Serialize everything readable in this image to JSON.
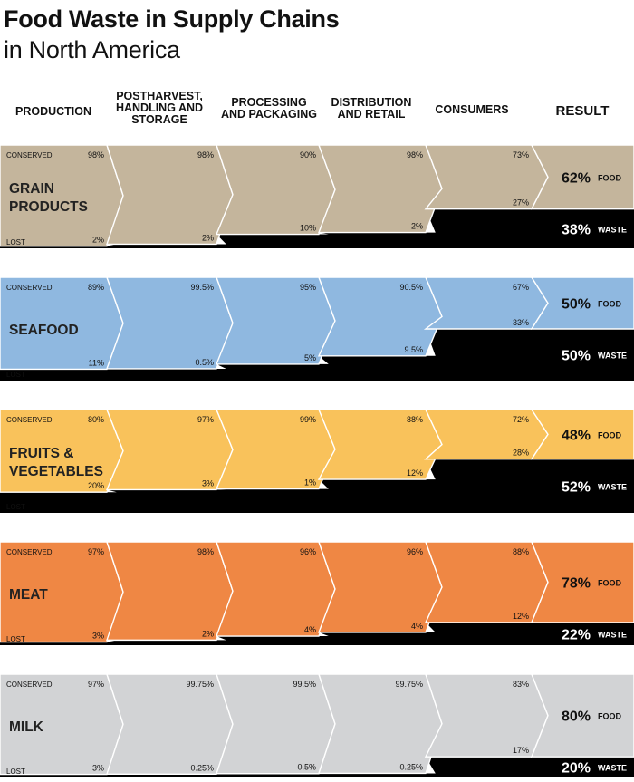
{
  "title": "Food Waste in Supply Chains",
  "subtitle": "in North America",
  "stages": [
    "PRODUCTION",
    "POSTHARVEST, HANDLING AND STORAGE",
    "PROCESSING AND PACKAGING",
    "DISTRIBUTION AND RETAIL",
    "CONSUMERS",
    "RESULT"
  ],
  "stage_lines": [
    [
      "PRODUCTION"
    ],
    [
      "POSTHARVEST,",
      "HANDLING AND",
      "STORAGE"
    ],
    [
      "PROCESSING",
      "AND PACKAGING"
    ],
    [
      "DISTRIBUTION",
      "AND RETAIL"
    ],
    [
      "CONSUMERS"
    ],
    [
      "RESULT"
    ]
  ],
  "row_labels": {
    "conserved": "CONSERVED",
    "lost": "LOST",
    "food": "FOOD",
    "waste": "WASTE"
  },
  "chart_data": {
    "type": "table",
    "title": "Food Waste in Supply Chains",
    "subtitle": "in North America",
    "columns": [
      "PRODUCTION",
      "POSTHARVEST, HANDLING AND STORAGE",
      "PROCESSING AND PACKAGING",
      "DISTRIBUTION AND RETAIL",
      "CONSUMERS",
      "RESULT"
    ],
    "series": [
      {
        "name": "GRAIN PRODUCTS",
        "name_lines": [
          "GRAIN",
          "PRODUCTS"
        ],
        "color": "#c4b59c",
        "conserved": [
          "98%",
          "98%",
          "90%",
          "98%",
          "73%"
        ],
        "lost": [
          "2%",
          "2%",
          "10%",
          "2%",
          "27%"
        ],
        "result_food": "62%",
        "result_waste": "38%",
        "food_fraction": 0.62
      },
      {
        "name": "SEAFOOD",
        "name_lines": [
          "SEAFOOD"
        ],
        "color": "#8fb8e0",
        "conserved": [
          "89%",
          "99.5%",
          "95%",
          "90.5%",
          "67%"
        ],
        "lost": [
          "11%",
          "0.5%",
          "5%",
          "9.5%",
          "33%"
        ],
        "result_food": "50%",
        "result_waste": "50%",
        "food_fraction": 0.5
      },
      {
        "name": "FRUITS & VEGETABLES",
        "name_lines": [
          "FRUITS &",
          "VEGETABLES"
        ],
        "color": "#f9c25b",
        "conserved": [
          "80%",
          "97%",
          "99%",
          "88%",
          "72%"
        ],
        "lost": [
          "20%",
          "3%",
          "1%",
          "12%",
          "28%"
        ],
        "result_food": "48%",
        "result_waste": "52%",
        "food_fraction": 0.48
      },
      {
        "name": "MEAT",
        "name_lines": [
          "MEAT"
        ],
        "color": "#ef8744",
        "conserved": [
          "97%",
          "98%",
          "96%",
          "96%",
          "88%"
        ],
        "lost": [
          "3%",
          "2%",
          "4%",
          "4%",
          "12%"
        ],
        "result_food": "78%",
        "result_waste": "22%",
        "food_fraction": 0.78
      },
      {
        "name": "MILK",
        "name_lines": [
          "MILK"
        ],
        "color": "#d2d3d5",
        "conserved": [
          "97%",
          "99.75%",
          "99.5%",
          "99.75%",
          "83%"
        ],
        "lost": [
          "3%",
          "0.25%",
          "0.5%",
          "0.25%",
          "17%"
        ],
        "result_food": "80%",
        "result_waste": "20%",
        "food_fraction": 0.8
      }
    ],
    "cumulative_remaining": [
      [
        0.98,
        0.9604,
        0.8644,
        0.8471,
        0.62
      ],
      [
        0.89,
        0.8856,
        0.8413,
        0.7614,
        0.5
      ],
      [
        0.8,
        0.776,
        0.7682,
        0.676,
        0.48
      ],
      [
        0.97,
        0.9506,
        0.9126,
        0.8761,
        0.78
      ],
      [
        0.97,
        0.9676,
        0.9627,
        0.9604,
        0.8
      ]
    ]
  }
}
